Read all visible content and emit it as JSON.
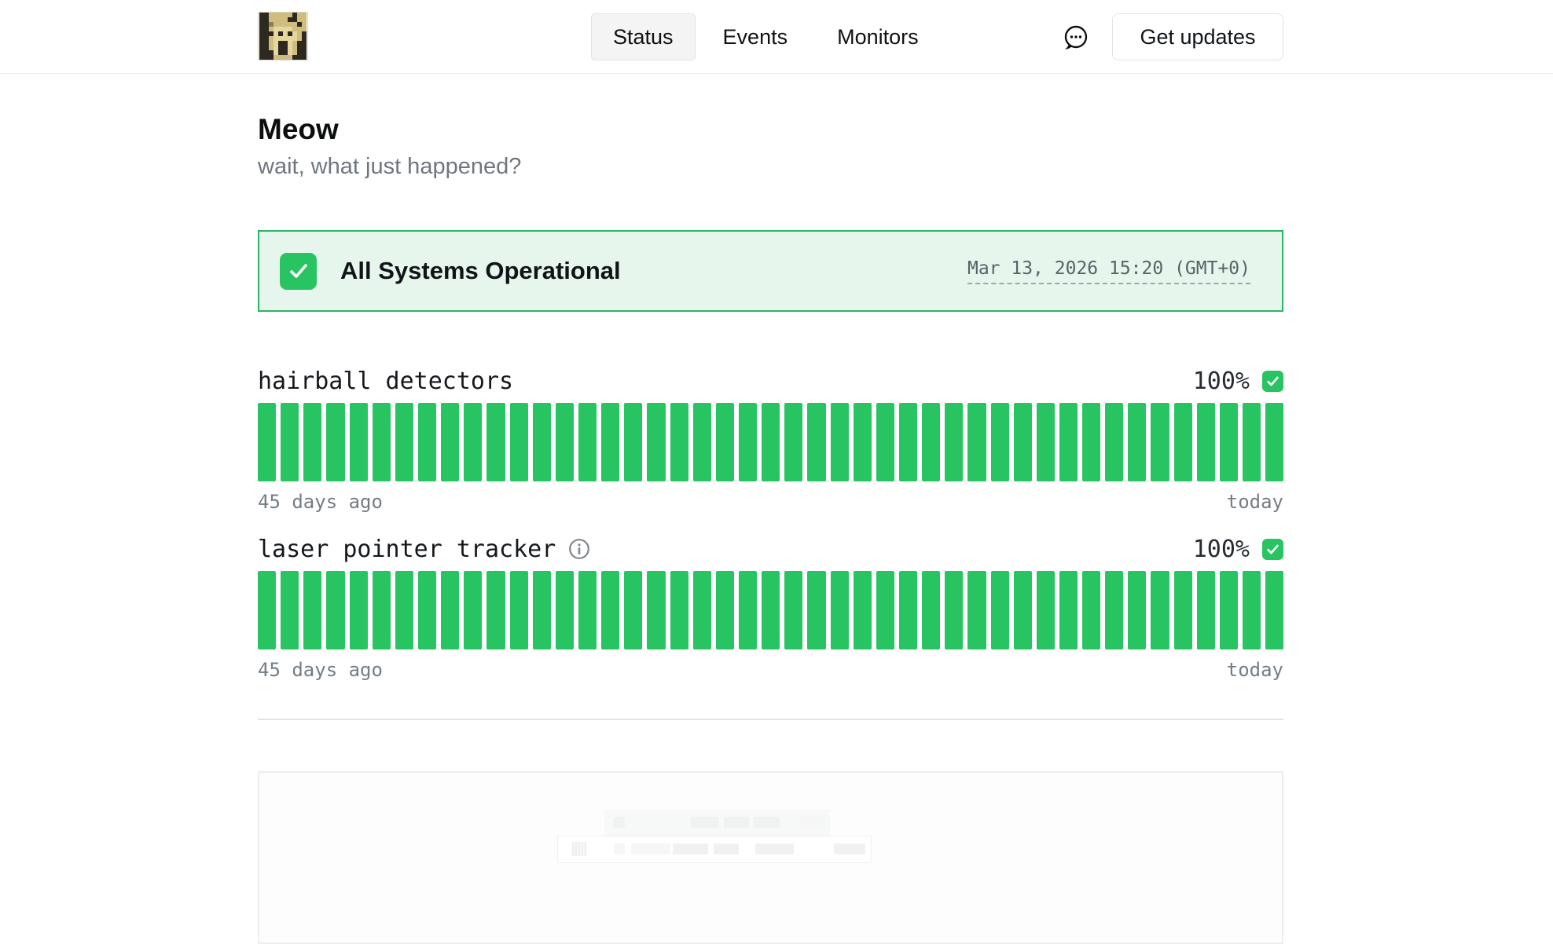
{
  "header": {
    "logo_icon": "screaming-cat-pixel-logo",
    "nav": [
      {
        "label": "Status",
        "active": true
      },
      {
        "label": "Events",
        "active": false
      },
      {
        "label": "Monitors",
        "active": false
      }
    ],
    "chat_icon": "speech-bubble-dots-icon",
    "get_updates_label": "Get updates"
  },
  "page": {
    "title": "Meow",
    "subtitle": "wait, what just happened?"
  },
  "status_banner": {
    "icon": "check-icon",
    "title": "All Systems Operational",
    "timestamp": "Mar 13, 2026 15:20 (GMT+0)"
  },
  "monitors": [
    {
      "name": "hairball detectors",
      "has_info_icon": false,
      "uptime": "100%",
      "status_icon": "check-icon",
      "days": 45,
      "bar_status": "operational",
      "range_start": "45 days ago",
      "range_end": "today"
    },
    {
      "name": "laser pointer tracker",
      "has_info_icon": true,
      "uptime": "100%",
      "status_icon": "check-icon",
      "days": 45,
      "bar_status": "operational",
      "range_start": "45 days ago",
      "range_end": "today"
    }
  ],
  "colors": {
    "operational_green": "#29c462",
    "banner_background": "#e6f6ec",
    "banner_border": "#2bb464"
  }
}
